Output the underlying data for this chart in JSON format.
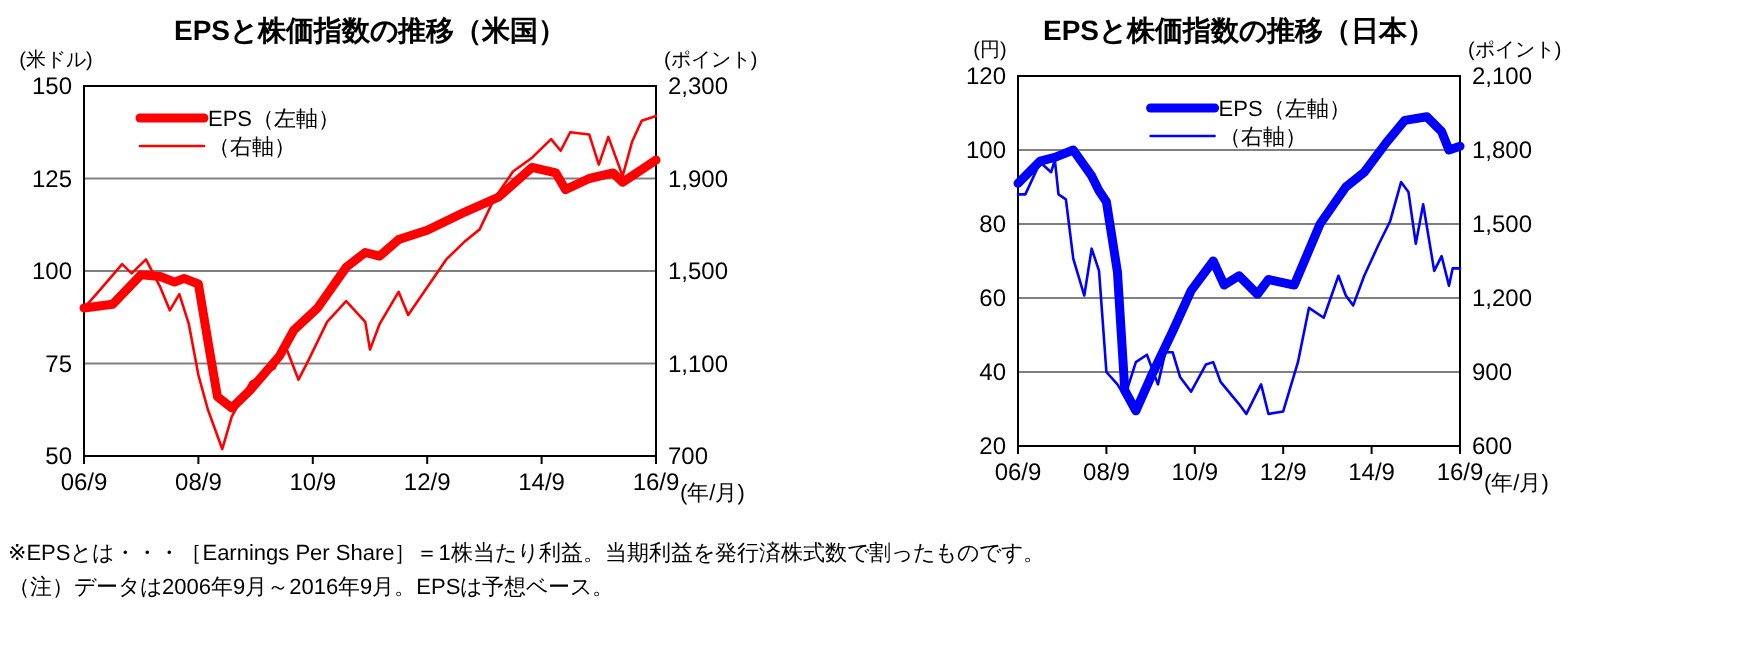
{
  "chart_data": [
    {
      "type": "line",
      "title": "EPSと株価指数の推移（米国）",
      "ylabel": "(米ドル)",
      "y2label": "(ポイント)",
      "xlabel": "(年/月)",
      "legend": "top left",
      "grid": "y",
      "marker": "none",
      "line_style": "solid",
      "xlim": [
        "2006-09",
        "2016-09"
      ],
      "xticks": [
        {
          "value": "2006-09",
          "label": "06/9"
        },
        {
          "value": "2008-09",
          "label": "08/9"
        },
        {
          "value": "2010-09",
          "label": "10/9"
        },
        {
          "value": "2012-09",
          "label": "12/9"
        },
        {
          "value": "2014-09",
          "label": "14/9"
        },
        {
          "value": "2016-09",
          "label": "16/9"
        }
      ],
      "ylim": [
        50,
        150
      ],
      "yticks": [
        50,
        75,
        100,
        125,
        150
      ],
      "y2lim": [
        700,
        2300
      ],
      "y2ticks": [
        {
          "value": 700,
          "label": "700"
        },
        {
          "value": 1100,
          "label": "1,100"
        },
        {
          "value": 1500,
          "label": "1,500"
        },
        {
          "value": 1900,
          "label": "1,900"
        },
        {
          "value": 2300,
          "label": "2,300"
        }
      ],
      "annotations": [
        "※EPSとは・・・［Earnings Per Share］＝1株当たり利益。当期利益を発行済株式数で割ったものです。",
        "（注）データは2006年9月～2016年9月。EPSは予想ベース。"
      ],
      "series": [
        {
          "name": "EPS（左軸）",
          "color": "#ff0000",
          "x": [
            "2006-09",
            "2007-03",
            "2007-09",
            "2008-01",
            "2008-04",
            "2008-06",
            "2008-09",
            "2008-11",
            "2009-01",
            "2009-04",
            "2009-08",
            "2010-02",
            "2010-05",
            "2010-10",
            "2011-04",
            "2011-08",
            "2011-11",
            "2012-03",
            "2012-09",
            "2013-05",
            "2013-12",
            "2014-07",
            "2014-12",
            "2015-02",
            "2015-07",
            "2015-12",
            "2016-02",
            "2016-09"
          ],
          "values": [
            90,
            91,
            99,
            98.5,
            97,
            98,
            96.5,
            81,
            66,
            63,
            68,
            77,
            84,
            90,
            101,
            105,
            104,
            108.5,
            111,
            116,
            120,
            128,
            126.5,
            122,
            125,
            126.5,
            124,
            130
          ]
        },
        {
          "name": "（右軸）",
          "color": "#ff0000",
          "axis": "y2",
          "x": [
            "2006-09",
            "2006-12",
            "2007-05",
            "2007-07",
            "2007-10",
            "2008-01",
            "2008-03",
            "2008-05",
            "2008-07",
            "2008-09",
            "2008-11",
            "2009-02",
            "2009-04",
            "2009-08",
            "2010-01",
            "2010-03",
            "2010-06",
            "2010-08",
            "2010-12",
            "2011-04",
            "2011-08",
            "2011-09",
            "2011-11",
            "2012-03",
            "2012-05",
            "2012-09",
            "2013-01",
            "2013-05",
            "2013-08",
            "2013-11",
            "2014-03",
            "2014-07",
            "2014-11",
            "2015-01",
            "2015-03",
            "2015-07",
            "2015-09",
            "2015-11",
            "2016-02",
            "2016-04",
            "2016-06",
            "2016-09"
          ],
          "values": [
            1340,
            1410,
            1530,
            1490,
            1550,
            1430,
            1330,
            1400,
            1270,
            1050,
            900,
            730,
            870,
            1020,
            1080,
            1190,
            1030,
            1110,
            1280,
            1370,
            1280,
            1160,
            1270,
            1410,
            1310,
            1430,
            1550,
            1630,
            1680,
            1810,
            1930,
            1990,
            2070,
            2020,
            2100,
            2090,
            1960,
            2080,
            1910,
            2060,
            2150,
            2170
          ]
        }
      ]
    },
    {
      "type": "line",
      "title": "EPSと株価指数の推移（日本）",
      "ylabel": "(円)",
      "y2label": "(ポイント)",
      "xlabel": "(年/月)",
      "legend": "top",
      "grid": "y",
      "marker": "none",
      "line_style": "solid",
      "xlim": [
        "2006-09",
        "2016-09"
      ],
      "xticks": [
        {
          "value": "2006-09",
          "label": "06/9"
        },
        {
          "value": "2008-09",
          "label": "08/9"
        },
        {
          "value": "2010-09",
          "label": "10/9"
        },
        {
          "value": "2012-09",
          "label": "12/9"
        },
        {
          "value": "2014-09",
          "label": "14/9"
        },
        {
          "value": "2016-09",
          "label": "16/9"
        }
      ],
      "ylim": [
        20,
        120
      ],
      "yticks": [
        20,
        40,
        60,
        80,
        100,
        120
      ],
      "y2lim": [
        600,
        2100
      ],
      "y2ticks": [
        {
          "value": 600,
          "label": "600"
        },
        {
          "value": 900,
          "label": "900"
        },
        {
          "value": 1200,
          "label": "1,200"
        },
        {
          "value": 1500,
          "label": "1,500"
        },
        {
          "value": 1800,
          "label": "1,800"
        },
        {
          "value": 2100,
          "label": "2,100"
        }
      ],
      "series": [
        {
          "name": "EPS（左軸）",
          "color": "#0000ff",
          "x": [
            "2006-09",
            "2007-03",
            "2007-07",
            "2007-12",
            "2008-05",
            "2008-07",
            "2008-09",
            "2008-12",
            "2009-02",
            "2009-05",
            "2009-09",
            "2010-03",
            "2010-08",
            "2011-02",
            "2011-05",
            "2011-09",
            "2012-02",
            "2012-05",
            "2012-12",
            "2013-07",
            "2014-02",
            "2014-07",
            "2015-01",
            "2015-06",
            "2015-12",
            "2016-04",
            "2016-06",
            "2016-09"
          ],
          "values": [
            91,
            97,
            98,
            100,
            93,
            89,
            86,
            67,
            35,
            29.5,
            38.5,
            51,
            62,
            70,
            63.5,
            66,
            61,
            65,
            63.5,
            80,
            90,
            94,
            102,
            108,
            109,
            105,
            100,
            101
          ]
        },
        {
          "name": "（右軸）",
          "color": "#0000ff",
          "axis": "y2",
          "x": [
            "2006-09",
            "2006-11",
            "2007-03",
            "2007-06",
            "2007-07",
            "2007-08",
            "2007-10",
            "2007-12",
            "2008-03",
            "2008-05",
            "2008-07",
            "2008-09",
            "2008-12",
            "2009-02",
            "2009-05",
            "2009-08",
            "2009-11",
            "2010-01",
            "2010-03",
            "2010-05",
            "2010-08",
            "2010-12",
            "2011-02",
            "2011-04",
            "2011-09",
            "2011-11",
            "2012-03",
            "2012-05",
            "2012-09",
            "2013-01",
            "2013-04",
            "2013-08",
            "2013-12",
            "2014-02",
            "2014-04",
            "2014-07",
            "2014-11",
            "2015-02",
            "2015-05",
            "2015-07",
            "2015-09",
            "2015-11",
            "2016-02",
            "2016-04",
            "2016-06",
            "2016-07",
            "2016-09"
          ],
          "values": [
            1620,
            1620,
            1750,
            1710,
            1760,
            1620,
            1600,
            1360,
            1210,
            1400,
            1310,
            900,
            850,
            800,
            940,
            970,
            850,
            980,
            980,
            880,
            820,
            930,
            940,
            860,
            770,
            730,
            850,
            730,
            740,
            940,
            1160,
            1120,
            1290,
            1210,
            1170,
            1290,
            1420,
            1510,
            1670,
            1630,
            1420,
            1580,
            1310,
            1370,
            1250,
            1320,
            1320
          ]
        }
      ]
    }
  ]
}
